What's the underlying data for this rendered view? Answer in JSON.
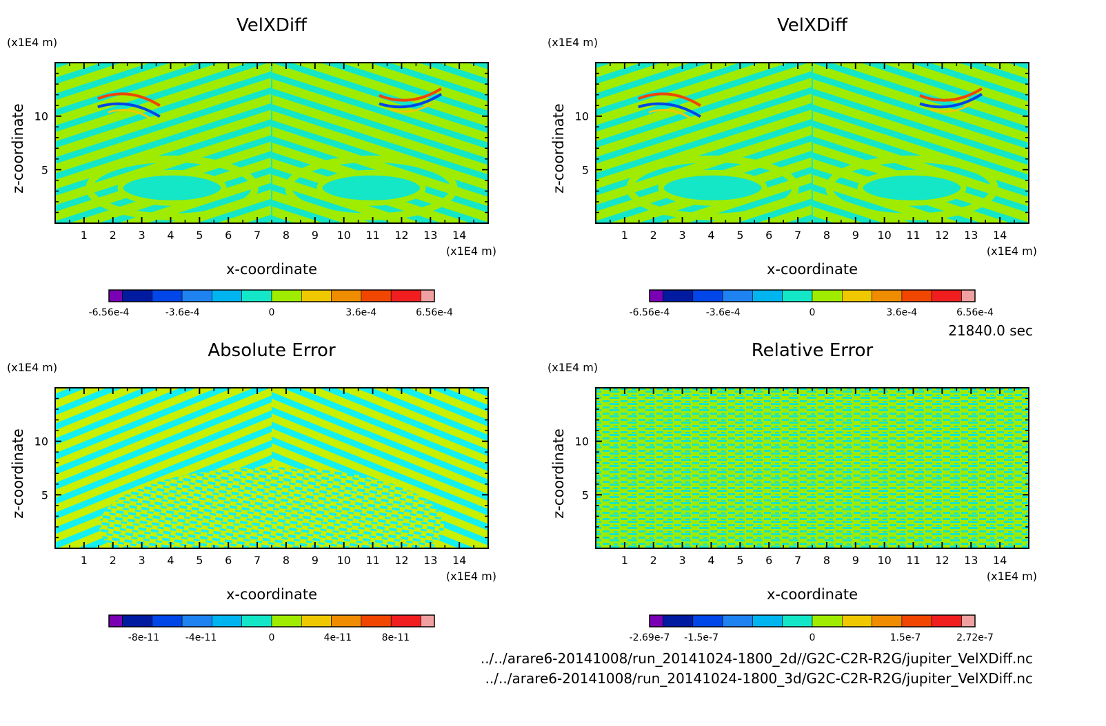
{
  "timestamp": "21840.0 sec",
  "file_paths": [
    "../../arare6-20141008/run_20141024-1800_2d//G2C-C2R-R2G/jupiter_VelXDiff.nc",
    "../../arare6-20141008/run_20141024-1800_3d/G2C-C2R-R2G/jupiter_VelXDiff.nc"
  ],
  "colors": {
    "palette": [
      "#7a00b4",
      "#001aa0",
      "#0046e8",
      "#1e82f0",
      "#00b4f0",
      "#14e6c8",
      "#a0ec00",
      "#f0c800",
      "#f08c00",
      "#f04600",
      "#f01e1e",
      "#f0a0a0"
    ]
  },
  "chart_data": [
    {
      "type": "heatmap",
      "title": "VelXDiff",
      "xlabel": "x-coordinate",
      "ylabel": "z-coordinate",
      "x_unit": "(x1E4 m)",
      "y_unit": "(x1E4 m)",
      "xlim": [
        0,
        15
      ],
      "ylim": [
        0,
        15
      ],
      "xticks": [
        1,
        2,
        3,
        4,
        5,
        6,
        7,
        8,
        9,
        10,
        11,
        12,
        13,
        14
      ],
      "yticks": [
        5,
        10
      ],
      "colorbar_labels": [
        "-6.56e-4",
        "-3.6e-4",
        "0",
        "3.6e-4",
        "6.56e-4"
      ],
      "colorbar_positions": [
        0,
        0.226,
        0.5,
        0.775,
        1
      ]
    },
    {
      "type": "heatmap",
      "title": "VelXDiff",
      "xlabel": "x-coordinate",
      "ylabel": "z-coordinate",
      "x_unit": "(x1E4 m)",
      "y_unit": "(x1E4 m)",
      "xlim": [
        0,
        15
      ],
      "ylim": [
        0,
        15
      ],
      "xticks": [
        1,
        2,
        3,
        4,
        5,
        6,
        7,
        8,
        9,
        10,
        11,
        12,
        13,
        14
      ],
      "yticks": [
        5,
        10
      ],
      "colorbar_labels": [
        "-6.56e-4",
        "-3.6e-4",
        "0",
        "3.6e-4",
        "6.56e-4"
      ],
      "colorbar_positions": [
        0,
        0.226,
        0.5,
        0.775,
        1
      ]
    },
    {
      "type": "heatmap",
      "title": "Absolute Error",
      "xlabel": "x-coordinate",
      "ylabel": "z-coordinate",
      "x_unit": "(x1E4 m)",
      "y_unit": "(x1E4 m)",
      "xlim": [
        0,
        15
      ],
      "ylim": [
        0,
        15
      ],
      "xticks": [
        1,
        2,
        3,
        4,
        5,
        6,
        7,
        8,
        9,
        10,
        11,
        12,
        13,
        14
      ],
      "yticks": [
        5,
        10
      ],
      "colorbar_labels": [
        "-8e-11",
        "-4e-11",
        "0",
        "4e-11",
        "8e-11"
      ],
      "colorbar_positions": [
        0.107,
        0.283,
        0.5,
        0.703,
        0.881
      ]
    },
    {
      "type": "heatmap",
      "title": "Relative Error",
      "xlabel": "x-coordinate",
      "ylabel": "z-coordinate",
      "x_unit": "(x1E4 m)",
      "y_unit": "(x1E4 m)",
      "xlim": [
        0,
        15
      ],
      "ylim": [
        0,
        15
      ],
      "xticks": [
        1,
        2,
        3,
        4,
        5,
        6,
        7,
        8,
        9,
        10,
        11,
        12,
        13,
        14
      ],
      "yticks": [
        5,
        10
      ],
      "colorbar_labels": [
        "-2.69e-7",
        "-1.5e-7",
        "0",
        "1.5e-7",
        "2.72e-7"
      ],
      "colorbar_positions": [
        0,
        0.159,
        0.5,
        0.786,
        1
      ]
    }
  ]
}
